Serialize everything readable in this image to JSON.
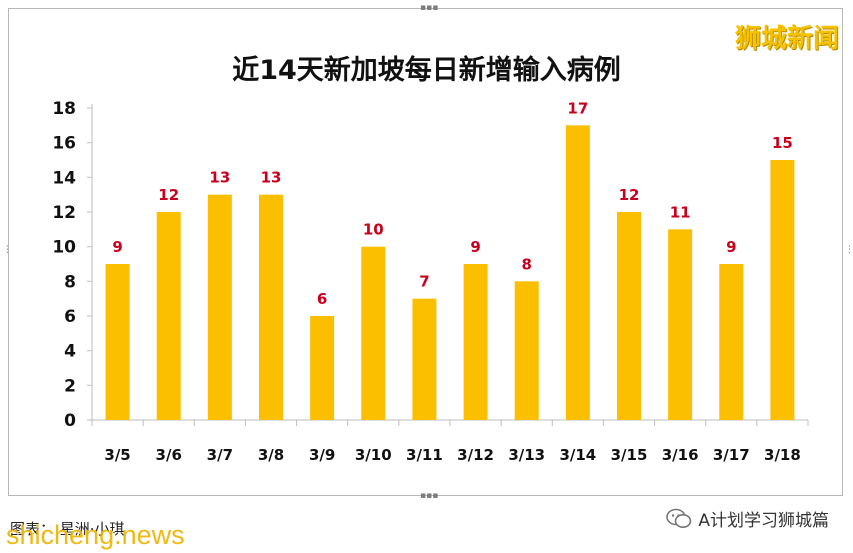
{
  "brand_label": "狮城新闻",
  "credit_text": "图表：  星洲·小琪",
  "watermark_text": "shicheng.news",
  "account": {
    "name": "A计划学习狮城篇",
    "icon": "wechat-icon"
  },
  "colors": {
    "bar": "#fbbf00",
    "label": "#c8001e",
    "title": "#111111"
  },
  "chart_data": {
    "type": "bar",
    "title": "近14天新加坡每日新增输入病例",
    "xlabel": "",
    "ylabel": "",
    "categories": [
      "3/5",
      "3/6",
      "3/7",
      "3/8",
      "3/9",
      "3/10",
      "3/11",
      "3/12",
      "3/13",
      "3/14",
      "3/15",
      "3/16",
      "3/17",
      "3/18"
    ],
    "values": [
      9,
      12,
      13,
      13,
      6,
      10,
      7,
      9,
      8,
      17,
      12,
      11,
      9,
      15
    ],
    "ylim": [
      0,
      18
    ],
    "yticks": [
      0,
      2,
      4,
      6,
      8,
      10,
      12,
      14,
      16,
      18
    ],
    "grid": false,
    "data_labels": true
  }
}
